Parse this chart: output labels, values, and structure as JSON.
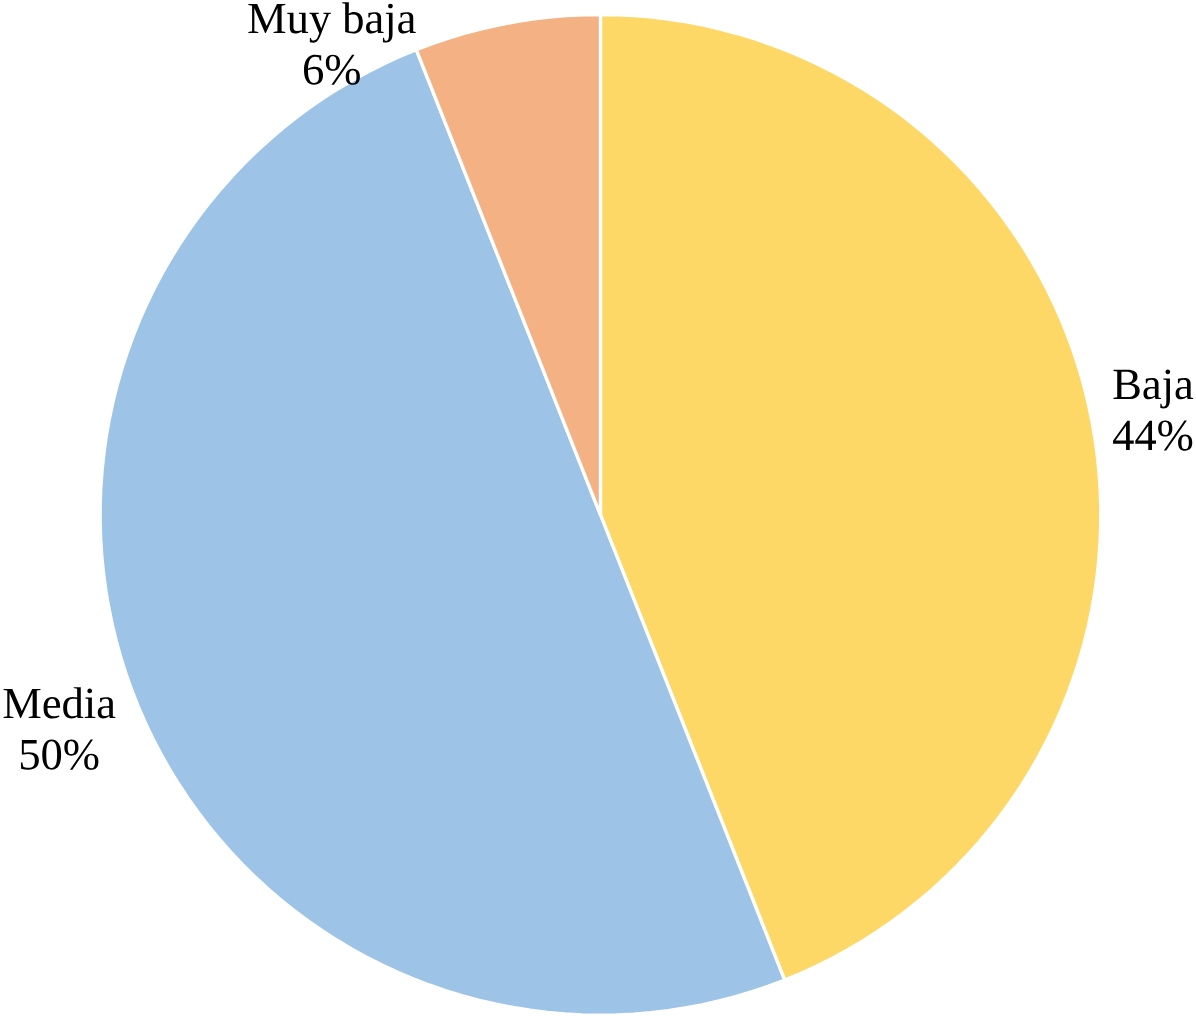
{
  "chart_data": {
    "type": "pie",
    "categories": [
      "Baja",
      "Media",
      "Muy baja"
    ],
    "values": [
      44,
      50,
      6
    ],
    "value_labels": [
      "44%",
      "50%",
      "6%"
    ],
    "colors": [
      "#fdd866",
      "#9dc3e6",
      "#f4b183"
    ]
  }
}
